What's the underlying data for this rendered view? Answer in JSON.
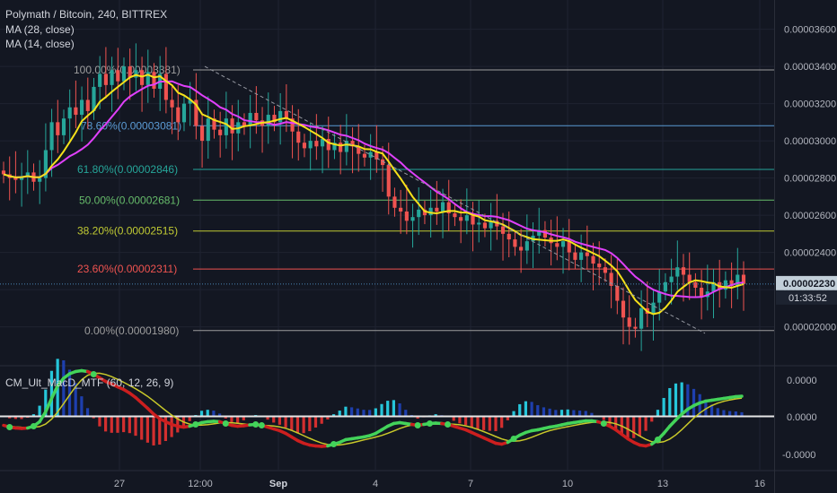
{
  "header": {
    "title": "Polymath / Bitcoin, 240, BITTREX",
    "indicator_1": "MA (28, close)",
    "indicator_2": "MA (14, close)",
    "macd_label": "CM_Ult_MacD_MTF (60, 12, 26, 9)"
  },
  "colors": {
    "background": "#131722",
    "up_candle": "#26a69a",
    "down_candle": "#ef5350",
    "ma28": "#e040fb",
    "ma14": "#f5e11a",
    "price_tag": "#c2cfd9"
  },
  "price_badge": {
    "price": "0.00002230",
    "countdown": "01:33:52"
  },
  "chart_data": [
    {
      "type": "candlestick",
      "title": "Polymath / Bitcoin, 240, BITTREX",
      "y_axis_side": "right",
      "ylim": [
        1.89e-05,
        3.74e-05
      ],
      "y_ticks": [
        "0.00003600",
        "0.00003400",
        "0.00003200",
        "0.00003000",
        "0.00002800",
        "0.00002600",
        "0.00002400",
        "0.00002200",
        "0.00002000"
      ],
      "x_ticks": [
        "27",
        "12:00",
        "Sep",
        "4",
        "7",
        "10",
        "13",
        "16"
      ],
      "grid": true,
      "fibonacci_levels": [
        {
          "label": "100.00%(0.00003381)",
          "price": 3.381e-05,
          "color": "#9e9e9e"
        },
        {
          "label": "78.60%(0.00003081)",
          "price": 3.081e-05,
          "color": "#5b9bd5"
        },
        {
          "label": "61.80%(0.00002846)",
          "price": 2.846e-05,
          "color": "#26a69a"
        },
        {
          "label": "50.00%(0.00002681)",
          "price": 2.681e-05,
          "color": "#66bb6a"
        },
        {
          "label": "38.20%(0.00002515)",
          "price": 2.515e-05,
          "color": "#c0ca33"
        },
        {
          "label": "23.60%(0.00002311)",
          "price": 2.311e-05,
          "color": "#ef5350"
        },
        {
          "label": "0.00%(0.00001980)",
          "price": 1.98e-05,
          "color": "#9e9e9e"
        }
      ],
      "current_price": 2.23e-05,
      "closes": [
        2.82e-05,
        2.8e-05,
        2.79e-05,
        2.81e-05,
        2.83e-05,
        2.78e-05,
        2.8e-05,
        2.95e-05,
        3.1e-05,
        3.03e-05,
        3.12e-05,
        3.18e-05,
        3.14e-05,
        3.22e-05,
        3.16e-05,
        3.29e-05,
        3.36e-05,
        3.3e-05,
        3.38e-05,
        3.32e-05,
        3.4e-05,
        3.34e-05,
        3.38e-05,
        3.3e-05,
        3.37e-05,
        3.28e-05,
        3.36e-05,
        3.22e-05,
        3.18e-05,
        3.1e-05,
        3.2e-05,
        3.22e-05,
        3.08e-05,
        3e-05,
        3.12e-05,
        3.06e-05,
        3.03e-05,
        3.12e-05,
        3.04e-05,
        3.1e-05,
        3.08e-05,
        3.15e-05,
        3.11e-05,
        3.08e-05,
        3.14e-05,
        3.1e-05,
        3.16e-05,
        3.12e-05,
        3.05e-05,
        2.99e-05,
        2.96e-05,
        3e-05,
        2.97e-05,
        3.01e-05,
        2.95e-05,
        2.99e-05,
        2.94e-05,
        3e-05,
        2.97e-05,
        2.93e-05,
        2.91e-05,
        2.94e-05,
        2.9e-05,
        2.87e-05,
        2.7e-05,
        2.64e-05,
        2.62e-05,
        2.57e-05,
        2.59e-05,
        2.63e-05,
        2.6e-05,
        2.64e-05,
        2.62e-05,
        2.67e-05,
        2.61e-05,
        2.59e-05,
        2.57e-05,
        2.6e-05,
        2.55e-05,
        2.56e-05,
        2.53e-05,
        2.57e-05,
        2.54e-05,
        2.5e-05,
        2.47e-05,
        2.43e-05,
        2.41e-05,
        2.46e-05,
        2.49e-05,
        2.52e-05,
        2.48e-05,
        2.45e-05,
        2.43e-05,
        2.46e-05,
        2.4e-05,
        2.36e-05,
        2.4e-05,
        2.38e-05,
        2.34e-05,
        2.32e-05,
        2.29e-05,
        2.22e-05,
        2.14e-05,
        2.05e-05,
        2e-05,
        1.99e-05,
        2.1e-05,
        2.07e-05,
        2.13e-05,
        2.19e-05,
        2.24e-05,
        2.27e-05,
        2.32e-05,
        2.28e-05,
        2.24e-05,
        2.21e-05,
        2.16e-05,
        2.19e-05,
        2.24e-05,
        2.2e-05,
        2.25e-05,
        2.22e-05,
        2.28e-05,
        2.23e-05
      ]
    },
    {
      "type": "bar",
      "title": "CM_Ult_MacD_MTF (60, 12, 26, 9)",
      "y_ticks": [
        "0.0000",
        "0.0000",
        "-0.0000"
      ],
      "macd": [
        -0.2,
        -0.24,
        -0.26,
        -0.27,
        -0.26,
        -0.22,
        -0.12,
        0.1,
        0.4,
        0.68,
        0.85,
        0.95,
        1.0,
        1.02,
        1.0,
        0.94,
        0.86,
        0.78,
        0.72,
        0.66,
        0.6,
        0.52,
        0.42,
        0.3,
        0.18,
        0.05,
        -0.05,
        -0.12,
        -0.18,
        -0.22,
        -0.24,
        -0.22,
        -0.18,
        -0.14,
        -0.12,
        -0.11,
        -0.12,
        -0.16,
        -0.2,
        -0.22,
        -0.21,
        -0.19,
        -0.18,
        -0.2,
        -0.24,
        -0.28,
        -0.32,
        -0.38,
        -0.46,
        -0.54,
        -0.6,
        -0.64,
        -0.66,
        -0.67,
        -0.66,
        -0.62,
        -0.58,
        -0.52,
        -0.5,
        -0.48,
        -0.46,
        -0.43,
        -0.38,
        -0.3,
        -0.22,
        -0.16,
        -0.14,
        -0.16,
        -0.18,
        -0.2,
        -0.18,
        -0.16,
        -0.15,
        -0.16,
        -0.18,
        -0.22,
        -0.26,
        -0.3,
        -0.36,
        -0.42,
        -0.48,
        -0.54,
        -0.6,
        -0.62,
        -0.58,
        -0.5,
        -0.42,
        -0.36,
        -0.32,
        -0.3,
        -0.27,
        -0.24,
        -0.22,
        -0.19,
        -0.16,
        -0.14,
        -0.12,
        -0.1,
        -0.1,
        -0.12,
        -0.16,
        -0.22,
        -0.3,
        -0.4,
        -0.5,
        -0.58,
        -0.64,
        -0.66,
        -0.62,
        -0.52,
        -0.38,
        -0.22,
        -0.08,
        0.05,
        0.16,
        0.24,
        0.3,
        0.34,
        0.36,
        0.38,
        0.4,
        0.42,
        0.44,
        0.45
      ],
      "signal_lag": 6,
      "histogram_colors": {
        "positive": "#26c6da",
        "positive_fading": "#1e3fae",
        "negative": "#d32f2f"
      },
      "macd_colors": {
        "rising": "#43d35a",
        "falling": "#cc1f1f"
      },
      "signal_color": "#c9c92a"
    }
  ]
}
